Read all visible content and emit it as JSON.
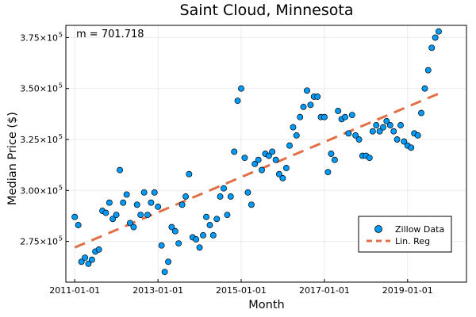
{
  "chart_data": {
    "type": "scatter",
    "title": "Saint Cloud, Minnesota",
    "xlabel": "Month",
    "ylabel": "Median Price ($)",
    "annotation": "m = 701.718",
    "xlim": [
      "2010-10-15",
      "2020-06-01"
    ],
    "ylim": [
      255000,
      381000
    ],
    "grid": true,
    "legend_position": "right",
    "x_ticks": [
      "2011-01-01",
      "2013-01-01",
      "2015-01-01",
      "2017-01-01",
      "2019-01-01"
    ],
    "y_ticks": [
      {
        "value": 275000,
        "mantissa": "2.75",
        "exponent": "5"
      },
      {
        "value": 300000,
        "mantissa": "3.00",
        "exponent": "5"
      },
      {
        "value": 325000,
        "mantissa": "3.25",
        "exponent": "5"
      },
      {
        "value": 350000,
        "mantissa": "3.50",
        "exponent": "5"
      },
      {
        "value": 375000,
        "mantissa": "3.75",
        "exponent": "5"
      }
    ],
    "series": [
      {
        "name": "Zillow Data",
        "kind": "scatter",
        "color": "#009af9",
        "start": "2011-01-01",
        "step": "month",
        "values": [
          287000,
          283000,
          265000,
          267000,
          264000,
          266000,
          270000,
          271000,
          290000,
          289000,
          294000,
          286000,
          288000,
          310000,
          294000,
          298000,
          284000,
          282000,
          293000,
          288000,
          299000,
          288000,
          294000,
          299000,
          292000,
          273000,
          260000,
          265000,
          282000,
          280000,
          274000,
          293000,
          297000,
          308000,
          277000,
          276000,
          272000,
          278000,
          287000,
          283000,
          278000,
          286000,
          297000,
          301000,
          288000,
          297000,
          319000,
          344000,
          350000,
          316000,
          299000,
          293000,
          313000,
          315000,
          310000,
          318000,
          317000,
          319000,
          315000,
          308000,
          306000,
          311000,
          322000,
          331000,
          327000,
          336000,
          341000,
          349000,
          342000,
          346000,
          346000,
          336000,
          336000,
          309000,
          318000,
          315000,
          339000,
          335000,
          336000,
          328000,
          337000,
          327000,
          325000,
          317000,
          317000,
          316000,
          329000,
          332000,
          329000,
          331000,
          334000,
          332000,
          329000,
          325000,
          332000,
          324000,
          322000,
          321000,
          328000,
          327000,
          338000,
          350000,
          359000,
          370000,
          375000,
          378000
        ]
      },
      {
        "name": "Lin. Reg",
        "kind": "line",
        "color": "#e26f46",
        "x": [
          "2011-01-01",
          "2019-10-01"
        ],
        "y": [
          272000,
          347500
        ]
      }
    ]
  }
}
